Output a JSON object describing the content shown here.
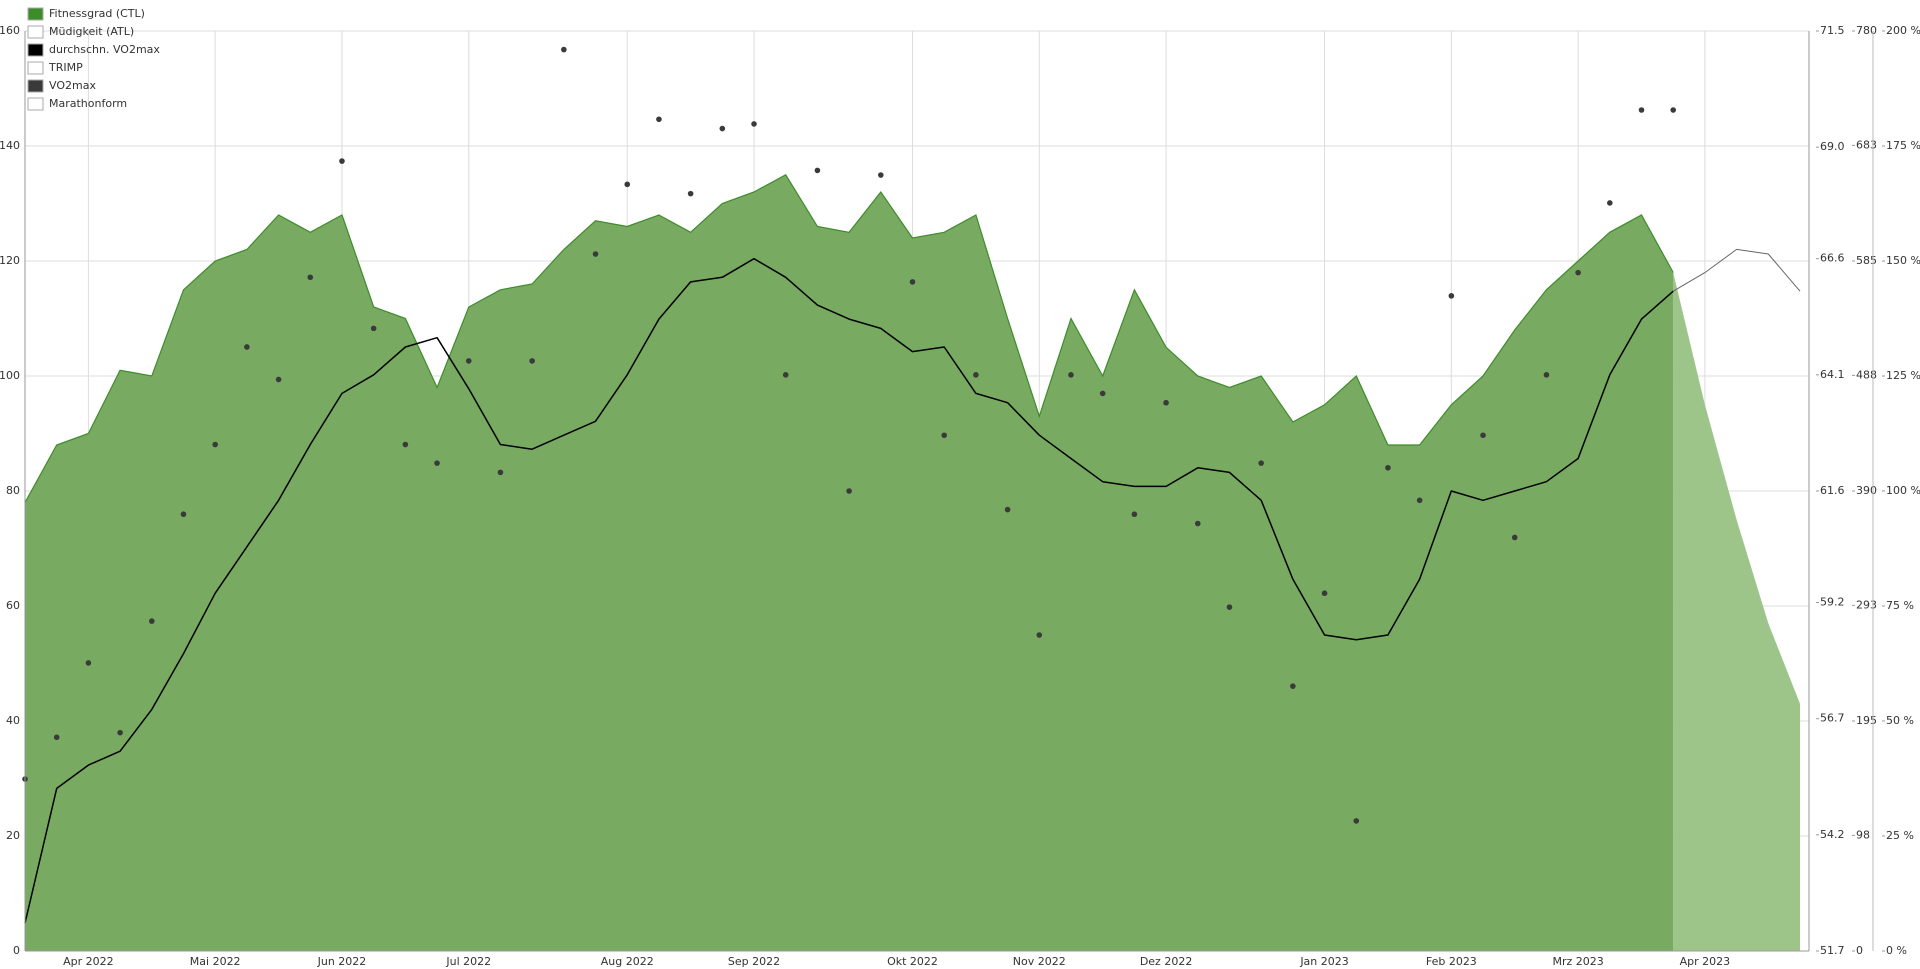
{
  "chart_data": {
    "type": "area",
    "grid": true,
    "categories": [
      null,
      null,
      "Apr 2022",
      null,
      null,
      null,
      "Mai 2022",
      null,
      null,
      null,
      "Jun 2022",
      null,
      null,
      null,
      "Jul 2022",
      null,
      null,
      null,
      null,
      "Aug 2022",
      null,
      null,
      null,
      "Sep 2022",
      null,
      null,
      null,
      null,
      "Okt 2022",
      null,
      null,
      null,
      "Nov 2022",
      null,
      null,
      null,
      "Dez 2022",
      null,
      null,
      null,
      null,
      "Jan 2023",
      null,
      null,
      null,
      "Feb 2023",
      null,
      null,
      null,
      "Mrz 2023",
      null,
      null,
      null,
      "Apr 2023",
      null,
      null,
      null
    ],
    "ylim": [
      0,
      160
    ],
    "yticks": [
      0,
      20,
      40,
      60,
      80,
      100,
      120,
      140,
      160
    ],
    "y2lim": [
      51.7,
      71.5
    ],
    "y2ticks": [
      51.7,
      54.2,
      56.7,
      59.2,
      61.6,
      64.1,
      66.6,
      {
        "value": 69,
        "label": "69.0"
      },
      71.5
    ],
    "y3lim": [
      0,
      780
    ],
    "y3ticks": [
      0,
      98,
      195,
      293,
      390,
      488,
      585,
      683,
      780
    ],
    "y4lim": [
      0,
      200
    ],
    "y4ticks": [
      {
        "value": 0,
        "label": "0 %"
      },
      {
        "value": 25,
        "label": "25 %"
      },
      {
        "value": 50,
        "label": "50 %"
      },
      {
        "value": 75,
        "label": "75 %"
      },
      {
        "value": 100,
        "label": "100 %"
      },
      {
        "value": 125,
        "label": "125 %"
      },
      {
        "value": 150,
        "label": "150 %"
      },
      {
        "value": 175,
        "label": "175 %"
      },
      {
        "value": 200,
        "label": "200 %"
      }
    ],
    "series": [
      {
        "name": "Fitnessgrad (CTL)",
        "type": "area",
        "color": "#3d8c2a",
        "fill": "#78ab61",
        "forecast_color": "#9dc58a",
        "values": [
          78,
          88,
          90,
          101,
          100,
          115,
          120,
          122,
          128,
          125,
          128,
          112,
          110,
          98,
          112,
          115,
          116,
          122,
          127,
          126,
          128,
          125,
          130,
          132,
          135,
          126,
          125,
          132,
          124,
          125,
          128,
          110,
          93,
          110,
          100,
          115,
          105,
          100,
          98,
          100,
          92,
          95,
          100,
          88,
          88,
          95,
          100,
          108,
          115,
          120,
          125,
          128,
          118,
          null,
          null,
          null,
          null
        ],
        "forecast_values": [
          null,
          null,
          null,
          null,
          null,
          null,
          null,
          null,
          null,
          null,
          null,
          null,
          null,
          null,
          null,
          null,
          null,
          null,
          null,
          null,
          null,
          null,
          null,
          null,
          null,
          null,
          null,
          null,
          null,
          null,
          null,
          null,
          null,
          null,
          null,
          null,
          null,
          null,
          null,
          null,
          null,
          null,
          null,
          null,
          null,
          null,
          null,
          null,
          null,
          null,
          null,
          null,
          118,
          95,
          75,
          57,
          43
        ]
      },
      {
        "name": "Müdigkeit (ATL)",
        "color": "#ffffff",
        "visible": false
      },
      {
        "name": "durchschn. VO2max",
        "type": "line",
        "axis": "y2",
        "color": "#000000",
        "forecast_color": "#666666",
        "values": [
          52.3,
          55.2,
          55.7,
          56.0,
          56.9,
          58.1,
          59.4,
          60.4,
          61.4,
          62.6,
          63.7,
          64.1,
          64.7,
          64.9,
          63.8,
          62.6,
          62.5,
          62.8,
          63.1,
          64.1,
          65.3,
          66.1,
          66.2,
          66.6,
          66.2,
          65.6,
          65.3,
          65.1,
          64.6,
          64.7,
          63.7,
          63.5,
          62.8,
          62.3,
          61.8,
          61.7,
          61.7,
          62.1,
          62.0,
          61.4,
          59.7,
          58.5,
          58.4,
          58.5,
          59.7,
          61.6,
          61.4,
          61.6,
          61.8,
          62.3,
          64.1,
          65.3,
          65.9,
          null,
          null,
          null,
          null
        ],
        "forecast_values": [
          null,
          null,
          null,
          null,
          null,
          null,
          null,
          null,
          null,
          null,
          null,
          null,
          null,
          null,
          null,
          null,
          null,
          null,
          null,
          null,
          null,
          null,
          null,
          null,
          null,
          null,
          null,
          null,
          null,
          null,
          null,
          null,
          null,
          null,
          null,
          null,
          null,
          null,
          null,
          null,
          null,
          null,
          null,
          null,
          null,
          null,
          null,
          null,
          null,
          null,
          null,
          null,
          65.9,
          66.3,
          66.8,
          66.7,
          65.9
        ]
      },
      {
        "name": "TRIMP",
        "color": "#ffffff",
        "visible": false
      },
      {
        "name": "VO2max",
        "type": "scatter",
        "axis": "y2",
        "color": "#3a3a3a",
        "values": [
          55.4,
          56.3,
          57.9,
          56.4,
          58.8,
          61.1,
          62.6,
          64.7,
          64.0,
          66.2,
          68.7,
          65.1,
          62.6,
          62.2,
          64.4,
          62.0,
          64.4,
          71.1,
          66.7,
          68.2,
          69.6,
          68.0,
          69.4,
          69.5,
          64.1,
          68.5,
          61.6,
          68.4,
          66.1,
          62.8,
          64.1,
          61.2,
          58.5,
          64.1,
          63.7,
          61.1,
          63.5,
          60.9,
          59.1,
          62.2,
          57.4,
          59.4,
          54.5,
          62.1,
          61.4,
          65.8,
          62.8,
          60.6,
          64.1,
          66.3,
          67.8,
          69.8,
          69.8,
          null,
          null,
          null,
          null
        ]
      },
      {
        "name": "Marathonform",
        "color": "#ffffff",
        "visible": false
      }
    ]
  }
}
